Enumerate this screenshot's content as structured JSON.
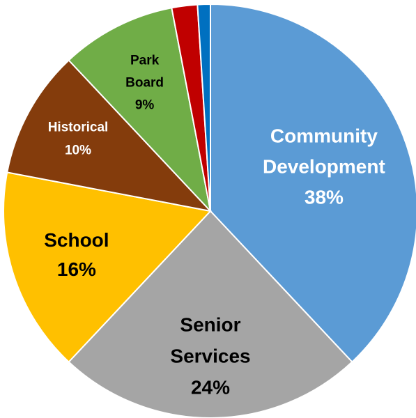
{
  "chart_data": {
    "type": "pie",
    "title": "",
    "slices": [
      {
        "label_lines": [
          "Community",
          "Development",
          "38%"
        ],
        "value": 38,
        "color": "#5B9BD5",
        "text_color": "#ffffff"
      },
      {
        "label_lines": [
          "Senior",
          "Services",
          "24%"
        ],
        "value": 24,
        "color": "#A5A5A5",
        "text_color": "#000000"
      },
      {
        "label_lines": [
          "School",
          "16%"
        ],
        "value": 16,
        "color": "#FFC000",
        "text_color": "#000000"
      },
      {
        "label_lines": [
          "Historical",
          "10%"
        ],
        "value": 10,
        "color": "#843C0C",
        "text_color": "#ffffff"
      },
      {
        "label_lines": [
          "Park",
          "Board",
          "9%"
        ],
        "value": 9,
        "color": "#70AD47",
        "text_color": "#000000"
      },
      {
        "label_lines": [],
        "value": 2,
        "color": "#C00000",
        "text_color": "#ffffff"
      },
      {
        "label_lines": [],
        "value": 1,
        "color": "#0070C0",
        "text_color": "#ffffff"
      }
    ]
  }
}
